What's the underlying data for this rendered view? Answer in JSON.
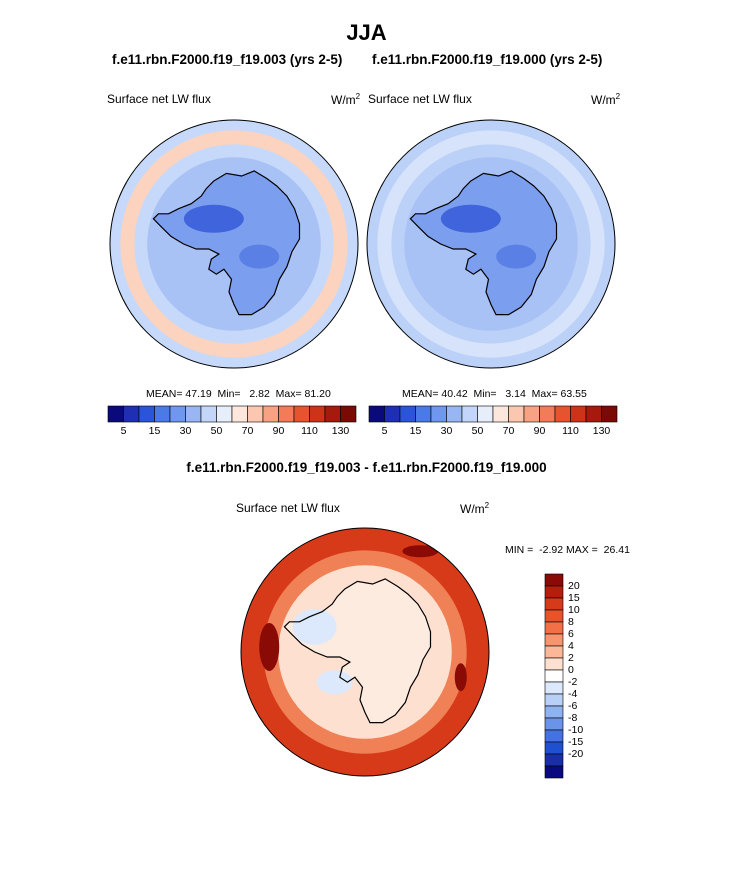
{
  "figure": {
    "title": "JJA",
    "panel_a_title": "f.e11.rbn.F2000.f19_f19.003 (yrs 2-5)",
    "panel_b_title": "f.e11.rbn.F2000.f19_f19.000 (yrs 2-5)",
    "diff_title": "f.e11.rbn.F2000.f19_f19.003 - f.e11.rbn.F2000.f19_f19.000"
  },
  "chart_data": [
    {
      "type": "heatmap",
      "projection": "south-polar-stereographic",
      "variable": "Surface net LW flux",
      "units_base": "W/m",
      "units_exp": "2",
      "stats": {
        "mean_label": "MEAN=",
        "mean": "47.19",
        "min_label": "Min=",
        "min": "2.82",
        "max_label": "Max=",
        "max": "81.20"
      },
      "colorbar": {
        "levels": [
          "5",
          "15",
          "30",
          "50",
          "70",
          "90",
          "110",
          "130"
        ],
        "colors": [
          "#0a0a7a",
          "#1e2fb4",
          "#2a55d8",
          "#4a7ae6",
          "#6f97ee",
          "#98b6f4",
          "#c3d5f8",
          "#e6eefb",
          "#fde7dc",
          "#fbc7b0",
          "#f7a383",
          "#f27c57",
          "#e5532f",
          "#cc3318",
          "#a51a0c",
          "#7a0a04"
        ]
      },
      "regions": {
        "ocean": "#c6d9fa",
        "ring": "#fbd3bf",
        "continent": "#7c9eef",
        "core": "#3f64dc"
      }
    },
    {
      "type": "heatmap",
      "projection": "south-polar-stereographic",
      "variable": "Surface net LW flux",
      "units_base": "W/m",
      "units_exp": "2",
      "stats": {
        "mean_label": "MEAN=",
        "mean": "40.42",
        "min_label": "Min=",
        "min": "3.14",
        "max_label": "Max=",
        "max": "63.55"
      },
      "colorbar": {
        "levels": [
          "5",
          "15",
          "30",
          "50",
          "70",
          "90",
          "110",
          "130"
        ],
        "colors": [
          "#0a0a7a",
          "#1e2fb4",
          "#2a55d8",
          "#4a7ae6",
          "#6f97ee",
          "#98b6f4",
          "#c3d5f8",
          "#e6eefb",
          "#fde7dc",
          "#fbc7b0",
          "#f7a383",
          "#f27c57",
          "#e5532f",
          "#cc3318",
          "#a51a0c",
          "#7a0a04"
        ]
      },
      "regions": {
        "ocean": "#bcd1f7",
        "ring": "#d6e3fb",
        "continent": "#7c9eef",
        "core": "#3f64dc"
      }
    },
    {
      "type": "heatmap",
      "projection": "south-polar-stereographic",
      "variable": "Surface net LW flux",
      "units_base": "W/m",
      "units_exp": "2",
      "stats": {
        "min_label": "MIN =",
        "min": "-2.92",
        "max_label": "MAX =",
        "max": "26.41"
      },
      "colorbar": {
        "levels": [
          "20",
          "15",
          "10",
          "8",
          "6",
          "4",
          "2",
          "0",
          "-2",
          "-4",
          "-6",
          "-8",
          "-10",
          "-15",
          "-20"
        ],
        "colors": [
          "#8a0a05",
          "#b51e0c",
          "#d63a18",
          "#e8532a",
          "#f37046",
          "#f89470",
          "#fbb898",
          "#fde0cf",
          "#ffffff",
          "#dce8fb",
          "#b8d0f6",
          "#8fb2f0",
          "#6a93e9",
          "#4472e0",
          "#2050d2",
          "#1a2ea8",
          "#0a0a80"
        ]
      },
      "regions": {
        "outer": "#d63a18",
        "mid": "#f08055",
        "inner": "#fde0cf",
        "continent": "#fdebe0",
        "patch": "#dce8fb",
        "deep": "#8a0a05"
      }
    }
  ]
}
